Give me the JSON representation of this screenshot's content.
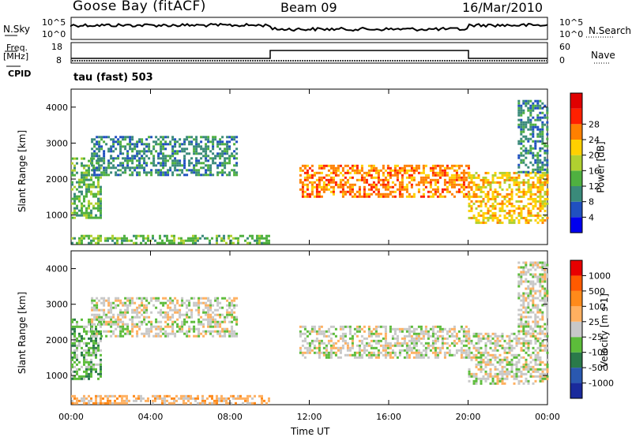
{
  "header": {
    "station": "Goose Bay (fitACF)",
    "beam": "Beam 09",
    "date": "16/Mar/2010"
  },
  "top_panels": {
    "nsky_label": "N.Sky",
    "nsky_ticks": [
      "10^5",
      "10^0"
    ],
    "nsearch_label": "N.Search",
    "freq_label": "Freq.",
    "freq_unit": "[MHz]",
    "freq_ticks": [
      "18",
      "8"
    ],
    "nave_label": "Nave",
    "nave_ticks": [
      "60",
      "0"
    ],
    "cpid_label": "CPID",
    "cpid_value": "tau (fast) 503"
  },
  "chart_data": [
    {
      "type": "heatmap",
      "title": "Power",
      "xlabel": "Time UT",
      "ylabel": "Slant Range [km]",
      "xlim": [
        0,
        24
      ],
      "ylim": [
        180,
        4500
      ],
      "x_ticks": [
        "00:00",
        "04:00",
        "08:00",
        "12:00",
        "16:00",
        "20:00",
        "00:00"
      ],
      "y_ticks": [
        "1000",
        "2000",
        "3000",
        "4000"
      ],
      "colorbar": {
        "label": "Power [dB]",
        "ticks": [
          "4",
          "8",
          "12",
          "16",
          "20",
          "24",
          "28"
        ],
        "colors": [
          "#0000ee",
          "#2050c0",
          "#3a8a7a",
          "#4fb040",
          "#b0d030",
          "#ffd000",
          "#ff8000",
          "#ff2000",
          "#e00000"
        ]
      },
      "regions": [
        {
          "t": [
            0.0,
            1.5
          ],
          "r": [
            900,
            2600
          ],
          "level": 3
        },
        {
          "t": [
            1.0,
            8.3
          ],
          "r": [
            2100,
            3200
          ],
          "level": 2
        },
        {
          "t": [
            0.0,
            10.0
          ],
          "r": [
            200,
            450
          ],
          "level": 3
        },
        {
          "t": [
            11.5,
            20.0
          ],
          "r": [
            1500,
            2400
          ],
          "level": 6
        },
        {
          "t": [
            20.0,
            24.0
          ],
          "r": [
            800,
            2200
          ],
          "level": 5
        },
        {
          "t": [
            22.5,
            24.0
          ],
          "r": [
            2200,
            4200
          ],
          "level": 2
        }
      ]
    },
    {
      "type": "heatmap",
      "title": "Velocity",
      "xlabel": "Time UT",
      "ylabel": "Slant Range [km]",
      "xlim": [
        0,
        24
      ],
      "ylim": [
        180,
        4500
      ],
      "x_ticks": [
        "00:00",
        "04:00",
        "08:00",
        "12:00",
        "16:00",
        "20:00",
        "00:00"
      ],
      "y_ticks": [
        "1000",
        "2000",
        "3000",
        "4000"
      ],
      "colorbar": {
        "label": "Velocity [m s-1]",
        "ticks": [
          "1000",
          "500",
          "100",
          "25",
          "-25",
          "-100",
          "-500",
          "-1000"
        ],
        "colors": [
          "#1a2a9c",
          "#2a58b0",
          "#2a7a4a",
          "#5cbc3a",
          "#c8c8c8",
          "#ffb060",
          "#ff8a1a",
          "#ff5a00",
          "#e80000"
        ]
      },
      "regions": [
        {
          "t": [
            0.0,
            1.5
          ],
          "r": [
            900,
            2600
          ],
          "level": 3
        },
        {
          "t": [
            1.0,
            8.3
          ],
          "r": [
            2100,
            3200
          ],
          "level": 4
        },
        {
          "t": [
            0.0,
            10.0
          ],
          "r": [
            200,
            450
          ],
          "level": 5
        },
        {
          "t": [
            11.5,
            20.0
          ],
          "r": [
            1500,
            2400
          ],
          "level": 4
        },
        {
          "t": [
            20.0,
            24.0
          ],
          "r": [
            800,
            2200
          ],
          "level": 4
        },
        {
          "t": [
            22.5,
            24.0
          ],
          "r": [
            2200,
            4200
          ],
          "level": 4
        }
      ]
    }
  ]
}
